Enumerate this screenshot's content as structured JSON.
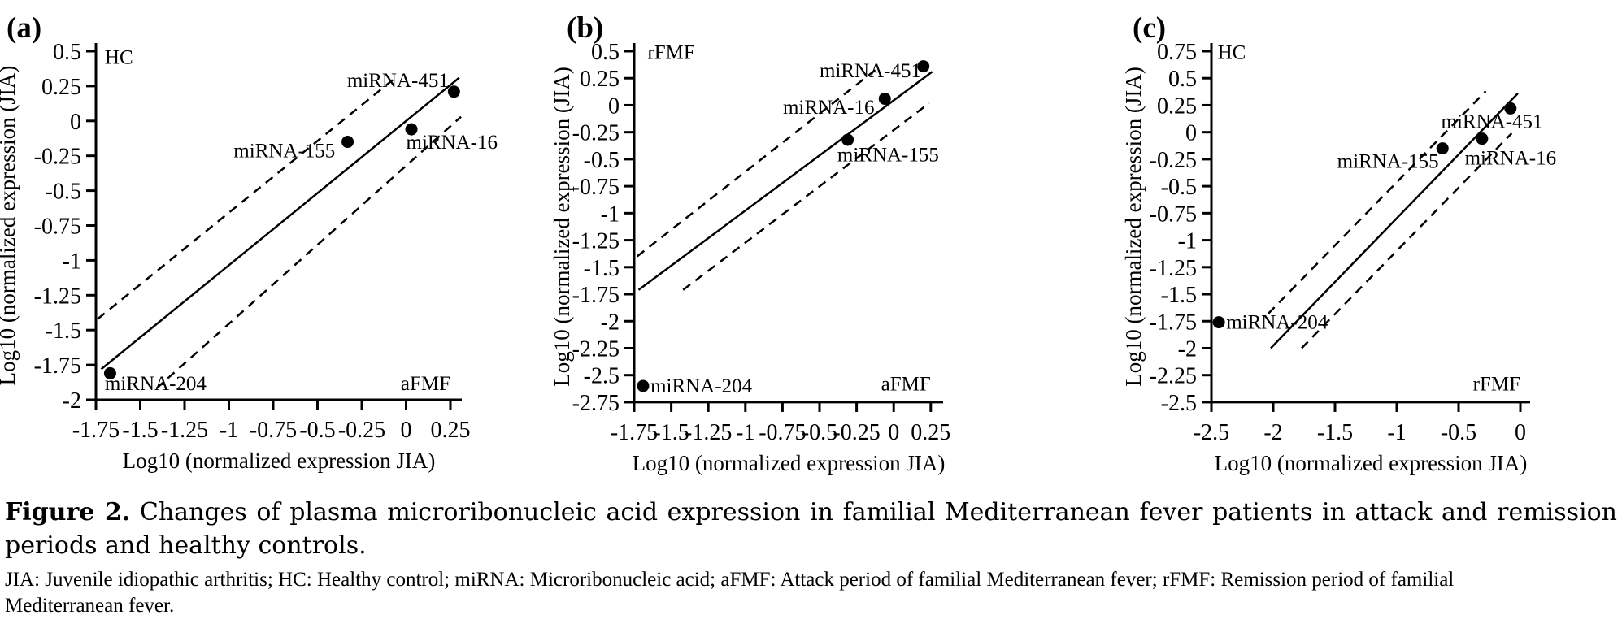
{
  "figure": {
    "caption_label": "Figure 2.",
    "caption_text": "Changes of plasma microribonucleic acid expression in familial Mediterranean fever patients in attack and remission periods and healthy controls.",
    "abbreviations": "JIA: Juvenile idiopathic arthritis; HC: Healthy control; miRNA: Microribonucleic acid; aFMF: Attack period of familial Mediterranean fever; rFMF: Remission period of familial Mediterranean fever."
  },
  "colors": {
    "ink": "#000000",
    "background": "#ffffff"
  },
  "chart_data": [
    {
      "panel": "(a)",
      "type": "scatter",
      "corner_top_left": "HC",
      "corner_bottom_right": "aFMF",
      "xlabel": "Log10 (normalized expression JIA)",
      "ylabel": "Log10 (normalized expression (JIA)",
      "xlim": [
        -1.75,
        0.3
      ],
      "ylim": [
        -2,
        0.5
      ],
      "xticks": [
        -1.75,
        -1.5,
        -1.25,
        -1,
        -0.75,
        -0.5,
        -0.25,
        0,
        0.25
      ],
      "yticks": [
        0.5,
        0.25,
        0,
        -0.25,
        -0.5,
        -0.75,
        -1,
        -1.25,
        -1.5,
        -1.75,
        -2
      ],
      "grid": false,
      "points": [
        {
          "name": "miRNA-204",
          "x": -1.67,
          "y": -1.81,
          "label_x": -1.7,
          "label_y": -1.93,
          "anchor": "start"
        },
        {
          "name": "miRNA-155",
          "x": -0.33,
          "y": -0.15,
          "label_x": -0.4,
          "label_y": -0.26,
          "anchor": "end"
        },
        {
          "name": "miRNA-16",
          "x": 0.03,
          "y": -0.06,
          "label_x": 0.0,
          "label_y": -0.2,
          "anchor": "start"
        },
        {
          "name": "miRNA-451",
          "x": 0.27,
          "y": 0.21,
          "label_x": 0.24,
          "label_y": 0.245,
          "anchor": "end"
        }
      ],
      "regression_line": {
        "x1": -1.72,
        "y1": -1.78,
        "x2": 0.3,
        "y2": 0.31
      },
      "ci_upper": {
        "x1": -1.74,
        "y1": -1.42,
        "x2": -0.06,
        "y2": 0.31
      },
      "ci_lower": {
        "x1": -1.41,
        "y1": -1.92,
        "x2": 0.31,
        "y2": 0.03
      },
      "corner_pos": {
        "tl_x": -1.7,
        "tl_y": 0.41,
        "br_x": 0.25,
        "br_y": -1.93
      }
    },
    {
      "panel": "(b)",
      "type": "scatter",
      "corner_top_left": "rFMF",
      "corner_bottom_right": "aFMF",
      "xlabel": "Log10 (normalized expression JIA)",
      "ylabel": "Log10 (normalized expression (JIA)",
      "xlim": [
        -1.75,
        0.29
      ],
      "ylim": [
        -2.75,
        0.5
      ],
      "xticks": [
        -1.75,
        -1.5,
        -1.25,
        -1,
        -0.75,
        -0.5,
        -0.25,
        0,
        0.25
      ],
      "yticks": [
        0.5,
        0.25,
        0,
        -0.25,
        -0.5,
        -0.75,
        -1,
        -1.25,
        -1.5,
        -1.75,
        -2,
        -2.25,
        -2.5,
        -2.75
      ],
      "grid": false,
      "points": [
        {
          "name": "miRNA-204",
          "x": -1.69,
          "y": -2.6,
          "label_x": -1.64,
          "label_y": -2.66,
          "anchor": "start"
        },
        {
          "name": "miRNA-155",
          "x": -0.31,
          "y": -0.32,
          "label_x": -0.38,
          "label_y": -0.52,
          "anchor": "start"
        },
        {
          "name": "miRNA-16",
          "x": -0.06,
          "y": 0.06,
          "label_x": -0.13,
          "label_y": -0.08,
          "anchor": "end"
        },
        {
          "name": "miRNA-451",
          "x": 0.2,
          "y": 0.36,
          "label_x": 0.185,
          "label_y": 0.26,
          "anchor": "end"
        }
      ],
      "regression_line": {
        "x1": -1.72,
        "y1": -1.71,
        "x2": 0.26,
        "y2": 0.31
      },
      "ci_upper": {
        "x1": -1.73,
        "y1": -1.4,
        "x2": -0.12,
        "y2": 0.33
      },
      "ci_lower": {
        "x1": -1.42,
        "y1": -1.71,
        "x2": 0.24,
        "y2": 0.02
      },
      "corner_pos": {
        "tl_x": -1.66,
        "tl_y": 0.43,
        "br_x": 0.25,
        "br_y": -2.64
      }
    },
    {
      "panel": "(c)",
      "type": "scatter",
      "corner_top_left": "HC",
      "corner_bottom_right": "rFMF",
      "xlabel": "Log10 (normalized expression JIA)",
      "ylabel": "Log10 (normalized expression (JIA)",
      "xlim": [
        -2.5,
        0.08
      ],
      "ylim": [
        -2.5,
        0.75
      ],
      "xticks": [
        -2.5,
        -2,
        -1.5,
        -1,
        -0.5,
        0
      ],
      "yticks": [
        0.75,
        0.5,
        0.25,
        0,
        -0.25,
        -0.5,
        -0.75,
        -1,
        -1.25,
        -1.5,
        -1.75,
        -2,
        -2.25,
        -2.5
      ],
      "grid": false,
      "points": [
        {
          "name": "miRNA-204",
          "x": -2.44,
          "y": -1.76,
          "label_x": -2.38,
          "label_y": -1.82,
          "anchor": "start"
        },
        {
          "name": "miRNA-155",
          "x": -0.63,
          "y": -0.15,
          "label_x": -0.66,
          "label_y": -0.33,
          "anchor": "end"
        },
        {
          "name": "miRNA-16",
          "x": -0.31,
          "y": -0.06,
          "label_x": -0.45,
          "label_y": -0.3,
          "anchor": "start"
        },
        {
          "name": "miRNA-451",
          "x": -0.08,
          "y": 0.22,
          "label_x": -0.23,
          "label_y": 0.04,
          "anchor": "middle"
        }
      ],
      "regression_line": {
        "x1": -2.02,
        "y1": -2.0,
        "x2": -0.02,
        "y2": 0.36
      },
      "ci_upper": {
        "x1": -2.04,
        "y1": -1.68,
        "x2": -0.28,
        "y2": 0.38
      },
      "ci_lower": {
        "x1": -1.77,
        "y1": -2.0,
        "x2": -0.07,
        "y2": -0.01
      },
      "corner_pos": {
        "tl_x": -2.45,
        "tl_y": 0.68,
        "br_x": 0.0,
        "br_y": -2.39
      }
    }
  ]
}
